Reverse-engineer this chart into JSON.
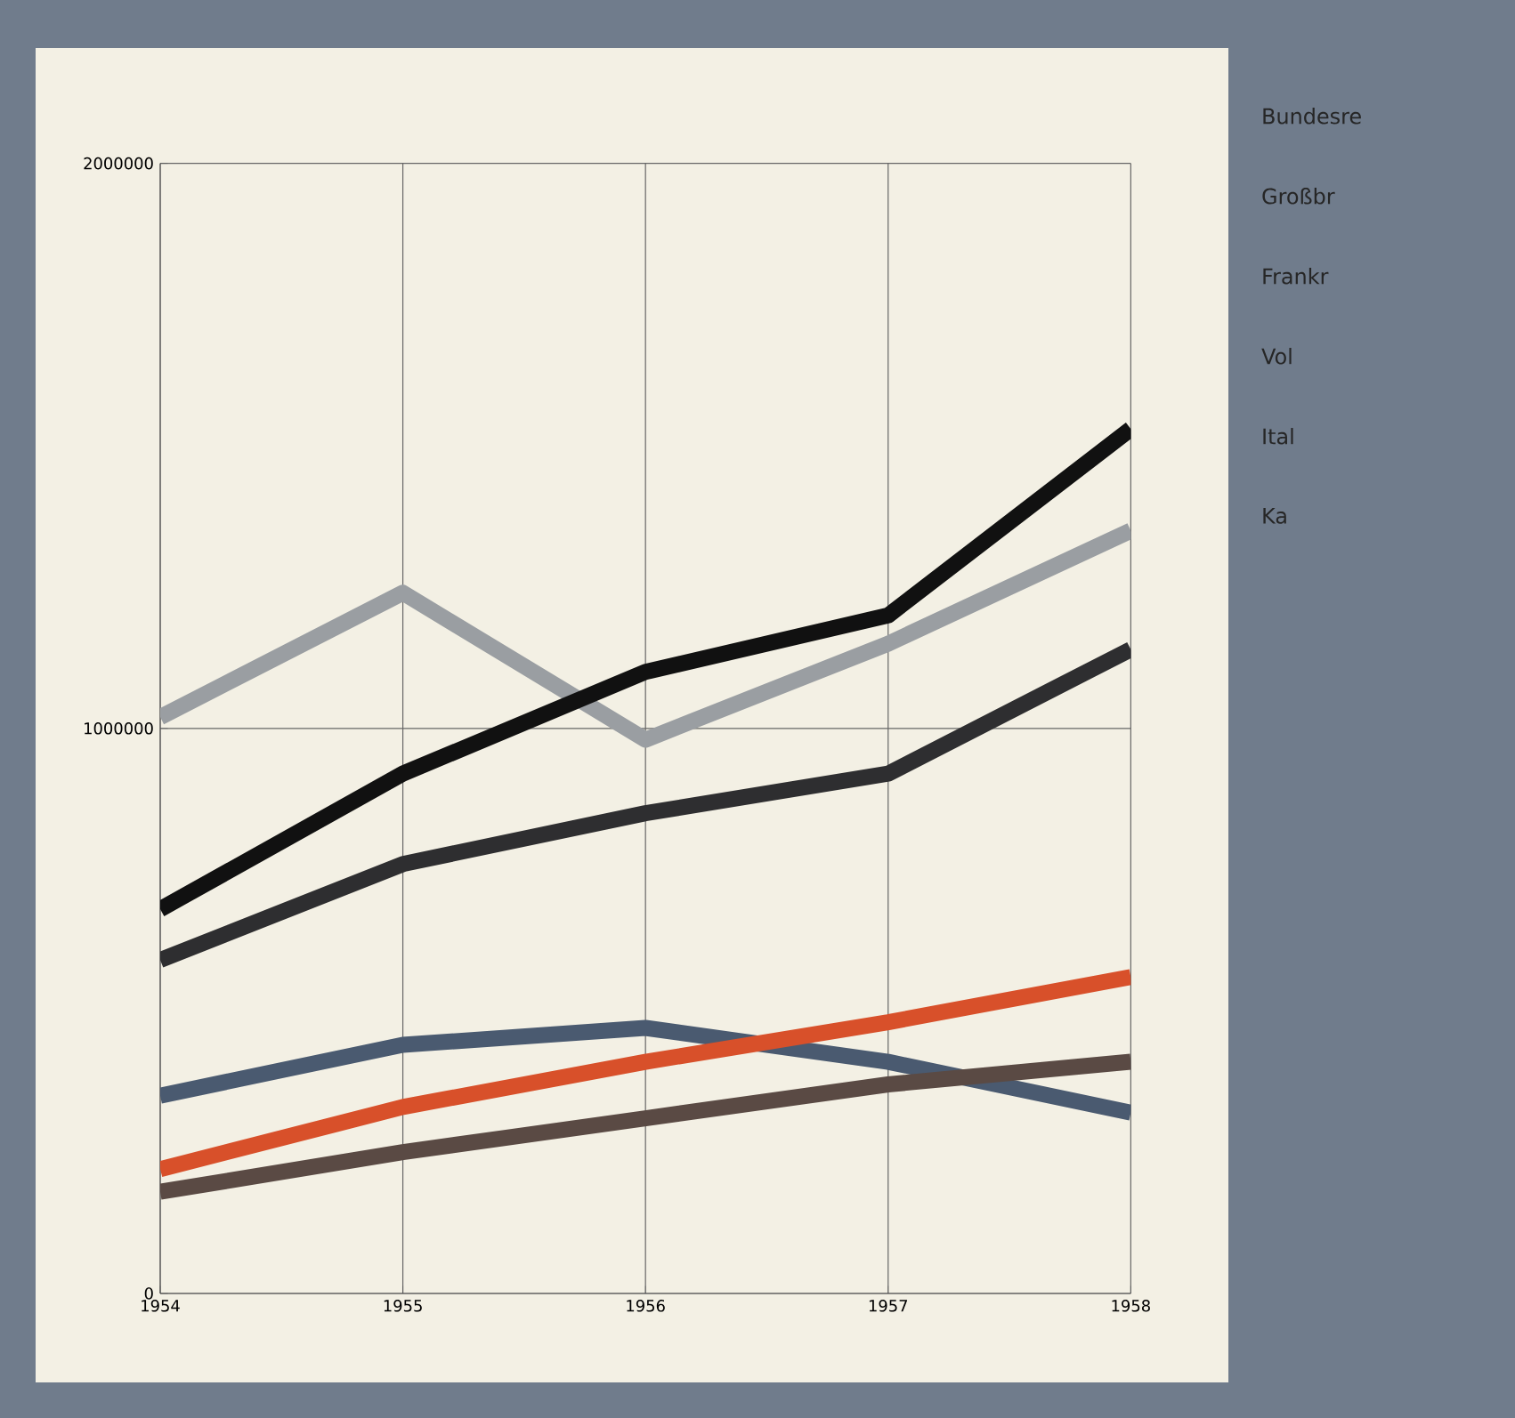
{
  "chart_data": {
    "type": "line",
    "x": [
      1954,
      1955,
      1956,
      1957,
      1958
    ],
    "xlim": [
      1954,
      1958
    ],
    "xticks": [
      1954,
      1955,
      1956,
      1957,
      1958
    ],
    "ylim": [
      0,
      2000000
    ],
    "yticks": [
      0,
      1000000,
      2000000
    ],
    "grid": true,
    "marker": "none",
    "line_style": "solid",
    "series": [
      {
        "color": "#9a9ea2",
        "values": [
          1020000,
          1240000,
          980000,
          1150000,
          1350000
        ]
      },
      {
        "color": "#111111",
        "values": [
          680000,
          920000,
          1100000,
          1200000,
          1530000
        ]
      },
      {
        "color": "#2e2e30",
        "values": [
          590000,
          760000,
          850000,
          920000,
          1140000
        ]
      },
      {
        "color": "#4a5a70",
        "values": [
          350000,
          440000,
          470000,
          410000,
          320000
        ]
      },
      {
        "color": "#d8502a",
        "values": [
          220000,
          330000,
          410000,
          480000,
          560000
        ]
      },
      {
        "color": "#5a4a44",
        "values": [
          180000,
          250000,
          310000,
          370000,
          410000
        ]
      }
    ],
    "annotations": [
      "Bundesre",
      "Großbr",
      "Frankr",
      "Vol",
      "Ital",
      "Ka"
    ]
  }
}
